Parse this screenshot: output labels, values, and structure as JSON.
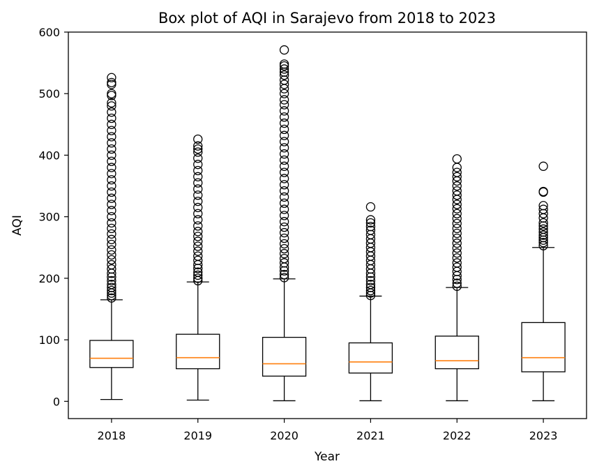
{
  "chart_data": {
    "type": "box",
    "title": "Box plot of AQI in Sarajevo from 2018 to 2023",
    "xlabel": "Year",
    "ylabel": "AQI",
    "ylim": [
      -28,
      600
    ],
    "yticks": [
      0,
      100,
      200,
      300,
      400,
      500,
      600
    ],
    "grid": false,
    "categories": [
      "2018",
      "2019",
      "2020",
      "2021",
      "2022",
      "2023"
    ],
    "boxes": [
      {
        "category": "2018",
        "whisker_low": 3,
        "q1": 55,
        "median": 70,
        "q3": 99,
        "whisker_high": 165,
        "outliers": [
          168,
          172,
          176,
          180,
          185,
          190,
          196,
          202,
          208,
          215,
          222,
          230,
          238,
          246,
          255,
          263,
          272,
          281,
          290,
          300,
          310,
          320,
          330,
          340,
          350,
          360,
          370,
          380,
          390,
          400,
          410,
          420,
          430,
          440,
          450,
          460,
          470,
          480,
          485,
          497,
          500,
          515,
          518,
          526
        ]
      },
      {
        "category": "2019",
        "whisker_low": 2,
        "q1": 53,
        "median": 71,
        "q3": 109,
        "whisker_high": 194,
        "outliers": [
          196,
          200,
          205,
          210,
          216,
          222,
          229,
          236,
          244,
          252,
          260,
          268,
          276,
          285,
          295,
          305,
          315,
          325,
          335,
          345,
          355,
          365,
          375,
          385,
          395,
          405,
          410,
          415,
          426
        ]
      },
      {
        "category": "2020",
        "whisker_low": 1,
        "q1": 41,
        "median": 61,
        "q3": 104,
        "whisker_high": 199,
        "outliers": [
          201,
          206,
          212,
          218,
          225,
          232,
          240,
          248,
          256,
          265,
          274,
          283,
          292,
          302,
          312,
          322,
          332,
          342,
          352,
          362,
          372,
          382,
          392,
          402,
          412,
          422,
          432,
          442,
          452,
          462,
          472,
          482,
          490,
          500,
          508,
          515,
          522,
          530,
          535,
          540,
          545,
          548,
          571
        ]
      },
      {
        "category": "2021",
        "whisker_low": 1,
        "q1": 46,
        "median": 64,
        "q3": 95,
        "whisker_high": 171,
        "outliers": [
          172,
          176,
          180,
          185,
          190,
          196,
          202,
          208,
          215,
          222,
          229,
          236,
          243,
          250,
          257,
          264,
          271,
          278,
          284,
          290,
          295,
          316
        ]
      },
      {
        "category": "2022",
        "whisker_low": 1,
        "q1": 53,
        "median": 66,
        "q3": 106,
        "whisker_high": 185,
        "outliers": [
          187,
          192,
          198,
          204,
          211,
          218,
          225,
          233,
          241,
          249,
          257,
          265,
          273,
          281,
          289,
          297,
          305,
          313,
          320,
          328,
          335,
          342,
          350,
          358,
          365,
          372,
          380,
          394
        ]
      },
      {
        "category": "2023",
        "whisker_low": 1,
        "q1": 48,
        "median": 71,
        "q3": 128,
        "whisker_high": 250,
        "outliers": [
          253,
          258,
          262,
          266,
          270,
          275,
          280,
          285,
          290,
          298,
          305,
          312,
          318,
          340,
          341,
          382
        ]
      }
    ],
    "colors": {
      "box": "#000000",
      "median": "#ff7f0e",
      "flier": "#000000",
      "background": "#ffffff"
    }
  }
}
